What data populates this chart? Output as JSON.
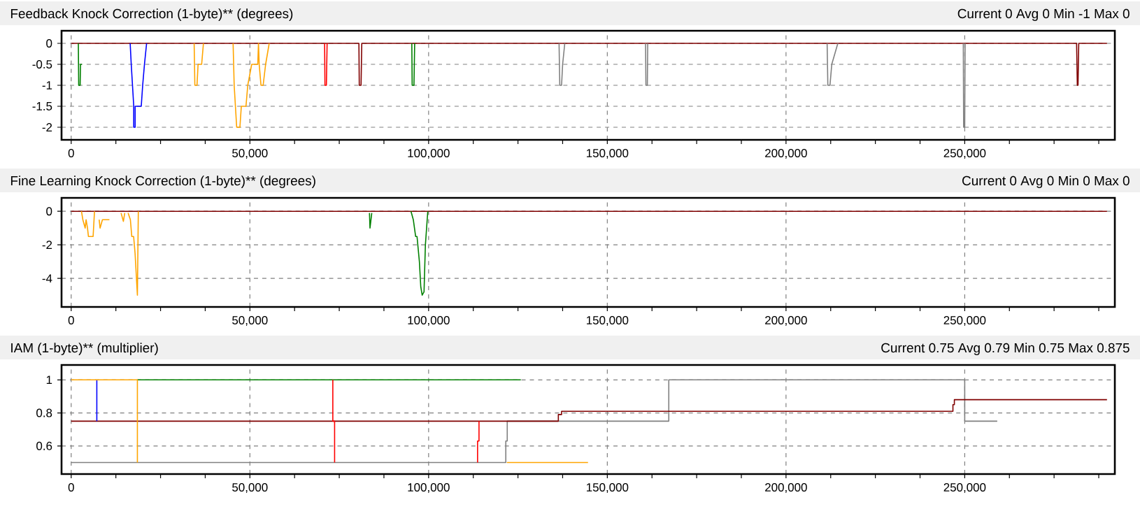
{
  "chart_data": [
    {
      "type": "line",
      "title": "Feedback Knock Correction (1-byte)** (degrees)",
      "subtitle": "Current 0 Avg 0 Min -1 Max 0",
      "xlim": [
        -2700,
        292000
      ],
      "ylim": [
        -2.3,
        0.3
      ],
      "xticks": [
        0,
        {
          "value": 12500,
          "label": null
        },
        {
          "value": 25000,
          "label": null
        },
        {
          "value": 37500,
          "label": null
        },
        {
          "value": 50000,
          "label": "50,000"
        },
        {
          "value": 62500,
          "label": null
        },
        {
          "value": 75000,
          "label": null
        },
        {
          "value": 87500,
          "label": null
        },
        {
          "value": 100000,
          "label": "100,000"
        },
        {
          "value": 112500,
          "label": null
        },
        {
          "value": 125000,
          "label": null
        },
        {
          "value": 137500,
          "label": null
        },
        {
          "value": 150000,
          "label": "150,000"
        },
        {
          "value": 162500,
          "label": null
        },
        {
          "value": 175000,
          "label": null
        },
        {
          "value": 187500,
          "label": null
        },
        {
          "value": 200000,
          "label": "200,000"
        },
        {
          "value": 212500,
          "label": null
        },
        {
          "value": 225000,
          "label": null
        },
        {
          "value": 237500,
          "label": null
        },
        {
          "value": 250000,
          "label": "250,000"
        },
        {
          "value": 262500,
          "label": null
        },
        {
          "value": 275000,
          "label": null
        },
        {
          "value": 287500,
          "label": null
        }
      ],
      "yticks": [
        0,
        -0.5,
        -1,
        -1.5,
        -2
      ],
      "grid": true,
      "series": [
        {
          "color": "#800000",
          "x": [
            0,
            80500,
            80600,
            81100,
            81300,
            281300,
            281500,
            281700,
            281900,
            289800
          ],
          "values": [
            0,
            0,
            -1,
            -1,
            0,
            0,
            -1,
            -1,
            0,
            0
          ]
        },
        {
          "color": "#008000",
          "x": [
            2000,
            2100,
            2500,
            2600,
            3000
          ],
          "values": [
            0,
            -1,
            -1,
            -0.5,
            -0.5
          ]
        },
        {
          "color": "#008000",
          "x": [
            95300,
            95400,
            95900,
            96100
          ],
          "values": [
            0,
            -1,
            -1,
            0
          ]
        },
        {
          "color": "#0000ff",
          "x": [
            16500,
            16800,
            17500,
            17500,
            17900,
            17900,
            19600,
            20000,
            20500,
            21100
          ],
          "values": [
            0,
            -0.5,
            -1.5,
            -2,
            -2,
            -1.5,
            -1.5,
            -1,
            -0.5,
            0
          ]
        },
        {
          "color": "#ffa500",
          "x": [
            34400,
            34600,
            35200,
            35500,
            36500,
            37000
          ],
          "values": [
            0,
            -1,
            -1,
            -0.5,
            -0.5,
            0
          ]
        },
        {
          "color": "#ffa500",
          "x": [
            45300,
            45600,
            46300,
            47200,
            47600,
            48900,
            49400,
            50500,
            52200,
            52400,
            52600,
            53100,
            53700,
            54400,
            55400
          ],
          "values": [
            0,
            -1,
            -2,
            -2,
            -1.5,
            -1.5,
            -1,
            -0.5,
            -0.5,
            0,
            -0.5,
            -1,
            -1,
            -0.5,
            0
          ]
        },
        {
          "color": "#ff0000",
          "x": [
            70900,
            71000,
            71400,
            71600
          ],
          "values": [
            0,
            -1,
            -1,
            0
          ]
        },
        {
          "color": "#808080",
          "x": [
            136500,
            136700,
            137200,
            137500,
            138100
          ],
          "values": [
            0,
            -1,
            -1,
            -0.5,
            0
          ]
        },
        {
          "color": "#808080",
          "x": [
            160700,
            160800,
            161200,
            161300
          ],
          "values": [
            0,
            -1,
            -1,
            0
          ]
        },
        {
          "color": "#808080",
          "x": [
            211500,
            211700,
            212300,
            212800,
            214500
          ],
          "values": [
            0,
            -1,
            -1,
            -0.5,
            0
          ]
        },
        {
          "color": "#808080",
          "x": [
            249600,
            249700,
            250000,
            250100
          ],
          "values": [
            0,
            -2,
            -2,
            0
          ]
        }
      ]
    },
    {
      "type": "line",
      "title": "Fine Learning Knock Correction (1-byte)** (degrees)",
      "subtitle": "Current 0 Avg 0 Min 0 Max 0",
      "xlim": [
        -2700,
        292000
      ],
      "ylim": [
        -5.7,
        0.8
      ],
      "xticks": [
        0,
        {
          "value": 12500,
          "label": null
        },
        {
          "value": 25000,
          "label": null
        },
        {
          "value": 37500,
          "label": null
        },
        {
          "value": 50000,
          "label": "50,000"
        },
        {
          "value": 62500,
          "label": null
        },
        {
          "value": 75000,
          "label": null
        },
        {
          "value": 87500,
          "label": null
        },
        {
          "value": 100000,
          "label": "100,000"
        },
        {
          "value": 112500,
          "label": null
        },
        {
          "value": 125000,
          "label": null
        },
        {
          "value": 137500,
          "label": null
        },
        {
          "value": 150000,
          "label": "150,000"
        },
        {
          "value": 162500,
          "label": null
        },
        {
          "value": 175000,
          "label": null
        },
        {
          "value": 187500,
          "label": null
        },
        {
          "value": 200000,
          "label": "200,000"
        },
        {
          "value": 212500,
          "label": null
        },
        {
          "value": 225000,
          "label": null
        },
        {
          "value": 237500,
          "label": null
        },
        {
          "value": 250000,
          "label": "250,000"
        },
        {
          "value": 262500,
          "label": null
        },
        {
          "value": 275000,
          "label": null
        },
        {
          "value": 287500,
          "label": null
        }
      ],
      "yticks": [
        0,
        -2,
        -4
      ],
      "grid": true,
      "series": [
        {
          "color": "#800000",
          "x": [
            0,
            289800
          ],
          "values": [
            0,
            0
          ]
        },
        {
          "color": "#ffa500",
          "x": [
            2870,
            3260,
            3910,
            4170,
            4560,
            4820,
            6130,
            6520
          ],
          "values": [
            0,
            -0.5,
            -1,
            -0.5,
            -1,
            -1.5,
            -1.5,
            0
          ]
        },
        {
          "color": "#ffa500",
          "x": [
            7820,
            8080,
            8740,
            10690
          ],
          "values": [
            -0.5,
            -1,
            -0.5,
            -0.5
          ]
        },
        {
          "color": "#ffa500",
          "x": [
            13950,
            14600,
            14990
          ],
          "values": [
            -0.1,
            -0.6,
            -0.1
          ]
        },
        {
          "color": "#ffa500",
          "x": [
            15910,
            16560,
            16950,
            17470,
            17870,
            18520,
            18780
          ],
          "values": [
            -0.1,
            -0.5,
            -1.5,
            -1.5,
            -2.5,
            -5,
            0
          ]
        },
        {
          "color": "#008000",
          "x": [
            83450,
            83600,
            84100
          ],
          "values": [
            -0.1,
            -1,
            -0.1
          ]
        },
        {
          "color": "#008000",
          "x": [
            95070,
            95720,
            96370,
            96760,
            97420,
            97810,
            98200,
            98720,
            99100,
            99770
          ],
          "values": [
            0,
            -0.5,
            -1.5,
            -1.5,
            -3,
            -4.5,
            -5,
            -4.8,
            -2,
            0
          ]
        }
      ]
    },
    {
      "type": "line",
      "title": "IAM (1-byte)** (multiplier)",
      "subtitle": "Current 0.75 Avg 0.79 Min 0.75 Max 0.875",
      "xlim": [
        -2700,
        292000
      ],
      "ylim": [
        0.43,
        1.09
      ],
      "xticks": [
        0,
        {
          "value": 12500,
          "label": null
        },
        {
          "value": 25000,
          "label": null
        },
        {
          "value": 37500,
          "label": null
        },
        {
          "value": 50000,
          "label": "50,000"
        },
        {
          "value": 62500,
          "label": null
        },
        {
          "value": 75000,
          "label": null
        },
        {
          "value": 87500,
          "label": null
        },
        {
          "value": 100000,
          "label": "100,000"
        },
        {
          "value": 112500,
          "label": null
        },
        {
          "value": 125000,
          "label": null
        },
        {
          "value": 137500,
          "label": null
        },
        {
          "value": 150000,
          "label": "150,000"
        },
        {
          "value": 162500,
          "label": null
        },
        {
          "value": 175000,
          "label": null
        },
        {
          "value": 187500,
          "label": null
        },
        {
          "value": 200000,
          "label": "200,000"
        },
        {
          "value": 212500,
          "label": null
        },
        {
          "value": 225000,
          "label": null
        },
        {
          "value": 237500,
          "label": null
        },
        {
          "value": 250000,
          "label": "250,000"
        },
        {
          "value": 262500,
          "label": null
        },
        {
          "value": 275000,
          "label": null
        },
        {
          "value": 287500,
          "label": null
        }
      ],
      "yticks": [
        0.6,
        0.8,
        1
      ],
      "grid": true,
      "series": [
        {
          "color": "#808080",
          "x": [
            0,
            121600,
            121600,
            122000,
            122000,
            167200,
            167200,
            250000,
            250000,
            259100
          ],
          "values": [
            0.5,
            0.5,
            0.63,
            0.63,
            0.75,
            0.75,
            1,
            1,
            0.75,
            0.75
          ]
        },
        {
          "color": "#008000",
          "x": [
            18520,
            125800
          ],
          "values": [
            1,
            1
          ]
        },
        {
          "color": "#800000",
          "x": [
            0,
            136300,
            136300,
            137200,
            137200,
            246700,
            246700,
            247100,
            247100,
            289800
          ],
          "values": [
            0.75,
            0.75,
            0.79,
            0.79,
            0.81,
            0.81,
            0.85,
            0.85,
            0.88,
            0.88
          ]
        },
        {
          "color": "#0000ff",
          "x": [
            7170,
            7170
          ],
          "values": [
            1,
            0.75
          ]
        },
        {
          "color": "#ffa500",
          "x": [
            0,
            18520,
            18520
          ],
          "values": [
            1,
            1,
            0.5
          ]
        },
        {
          "color": "#ffa500",
          "x": [
            121900,
            144600
          ],
          "values": [
            0.5,
            0.5
          ]
        },
        {
          "color": "#ff0000",
          "x": [
            73200,
            73200,
            73700,
            73700
          ],
          "values": [
            1,
            0.75,
            0.75,
            0.5
          ]
        },
        {
          "color": "#ff0000",
          "x": [
            114100,
            114100,
            113700,
            113700
          ],
          "values": [
            0.75,
            0.63,
            0.63,
            0.5
          ]
        }
      ]
    }
  ]
}
